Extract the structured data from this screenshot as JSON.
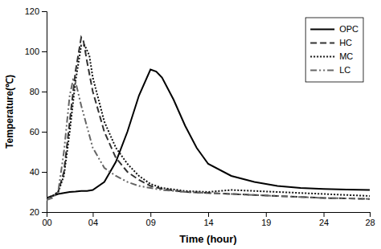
{
  "chart_data": {
    "type": "line",
    "xlabel": "Time (hour)",
    "ylabel": "Temperature(℃)",
    "xlim": [
      0,
      28
    ],
    "ylim": [
      20,
      120
    ],
    "xticks": [
      {
        "value": 0,
        "label": "00"
      },
      {
        "value": 4,
        "label": "04"
      },
      {
        "value": 9,
        "label": "09"
      },
      14,
      19,
      24,
      28
    ],
    "yticks": [
      20,
      40,
      60,
      80,
      100,
      120
    ],
    "grid": false,
    "legend": "upper right",
    "series": [
      {
        "name": "OPC",
        "color": "#000000",
        "line_style": "solid",
        "x": [
          0,
          0.5,
          1.0,
          1.5,
          2.0,
          2.5,
          3.0,
          3.5,
          4.0,
          5.0,
          6.0,
          7.0,
          8.0,
          9.0,
          9.5,
          10.0,
          11.0,
          12.0,
          13.0,
          14.0,
          16.0,
          18.0,
          20.0,
          22.0,
          24.0,
          26.0,
          28.0
        ],
        "values": [
          27,
          28,
          29,
          29.5,
          30,
          30.2,
          30.5,
          30.5,
          31,
          35,
          45,
          60,
          78,
          91,
          90,
          87,
          76,
          63,
          52,
          44,
          38,
          35,
          33,
          32,
          31.5,
          31.2,
          31.0
        ]
      },
      {
        "name": "HC",
        "color": "#333333",
        "line_style": "dashed",
        "x": [
          0,
          0.5,
          1.0,
          1.5,
          2.0,
          2.5,
          3.0,
          3.2,
          3.5,
          4.0,
          5.0,
          6.0,
          7.0,
          8.0,
          9.0,
          10.0,
          12.0,
          14.0,
          16.0,
          18.0,
          20.0,
          22.0,
          24.0,
          26.0,
          28.0
        ],
        "values": [
          27,
          28,
          30,
          40,
          65,
          90,
          107,
          105,
          95,
          80,
          60,
          47,
          40,
          36,
          33,
          31.5,
          30,
          29.5,
          29,
          28.5,
          28,
          27.5,
          27,
          26.8,
          26.5
        ]
      },
      {
        "name": "MC",
        "color": "#111111",
        "line_style": "densely_dotted",
        "x": [
          0,
          0.5,
          1.0,
          1.5,
          2.0,
          2.5,
          3.0,
          3.3,
          3.7,
          4.0,
          5.0,
          6.0,
          7.0,
          8.0,
          9.0,
          10.0,
          12.0,
          14.0,
          16.0,
          18.0,
          20.0,
          22.0,
          24.0,
          26.0,
          28.0
        ],
        "values": [
          27,
          28,
          30,
          38,
          60,
          85,
          103,
          103,
          98,
          87,
          65,
          52,
          44,
          38,
          34,
          32,
          30.5,
          30,
          31,
          30.5,
          30,
          29.5,
          29,
          28.5,
          28
        ]
      },
      {
        "name": "LC",
        "color": "#666666",
        "line_style": "dashdot",
        "x": [
          0,
          0.5,
          1.0,
          1.5,
          2.0,
          2.3,
          2.5,
          3.0,
          4.0,
          5.0,
          6.0,
          7.0,
          8.0,
          9.0,
          10.0,
          12.0,
          14.0,
          16.0,
          18.0,
          20.0,
          22.0,
          24.0,
          26.0,
          28.0
        ],
        "values": [
          26,
          27,
          30,
          50,
          78,
          86,
          85,
          73,
          52,
          42,
          38,
          35,
          33,
          32,
          31,
          30,
          29.5,
          29,
          28.5,
          28,
          27.5,
          27,
          26.8,
          26.5
        ]
      }
    ]
  }
}
